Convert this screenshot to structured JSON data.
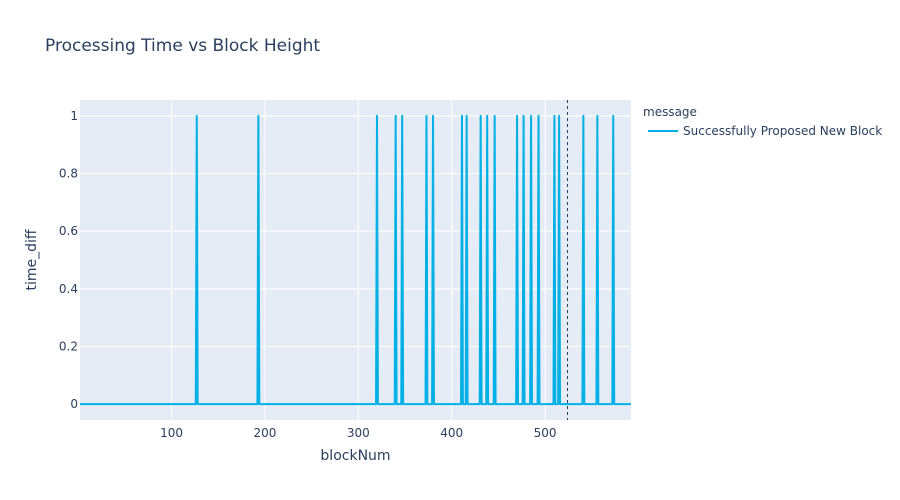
{
  "chart_data": {
    "type": "line",
    "title": "Processing Time vs Block Height",
    "xlabel": "blockNum",
    "ylabel": "time_diff",
    "xlim": [
      2,
      592
    ],
    "ylim": [
      -0.055,
      1.055
    ],
    "x_ticks": [
      100,
      200,
      300,
      400,
      500
    ],
    "y_ticks": [
      0,
      0.2,
      0.4,
      0.6,
      0.8,
      1
    ],
    "y_tick_labels": [
      "0",
      "0.2",
      "0.4",
      "0.6",
      "0.8",
      "1"
    ],
    "grid": true,
    "legend_title": "message",
    "legend_position": "top-right, outside plot",
    "vertical_reference_line_x": 524,
    "series": [
      {
        "name": "Successfully Proposed New Block",
        "color": "#00b0e6",
        "spikes_at_x": [
          127,
          193,
          320,
          340,
          347,
          373,
          380,
          411,
          416,
          431,
          438,
          446,
          470,
          477,
          485,
          493,
          510,
          515,
          541,
          556,
          573
        ],
        "spike_value": 1,
        "baseline_value": 0
      }
    ]
  },
  "colors": {
    "plot_background": "#e5ecf6",
    "grid": "#ffffff",
    "text": "#2a3f5f",
    "reference_line": "#2a3f5f"
  }
}
